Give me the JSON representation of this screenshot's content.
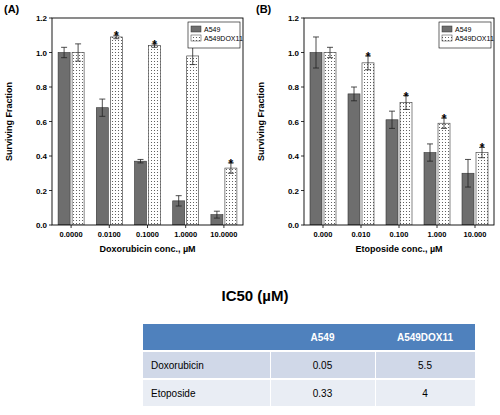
{
  "chart_data": [
    {
      "type": "bar",
      "title": "(A)",
      "x_label": "Doxorubicin conc., µM",
      "y_label": "Surviving Fraction",
      "categories": [
        "0.0000",
        "0.0100",
        "0.1000",
        "1.0000",
        "10.0000"
      ],
      "series": [
        {
          "name": "A549",
          "color": "#6e6e6e",
          "values": [
            1.0,
            0.68,
            0.37,
            0.14,
            0.06
          ],
          "errors": [
            0.03,
            0.05,
            0.01,
            0.03,
            0.02
          ]
        },
        {
          "name": "A549DOX11",
          "color": "#ffffff",
          "values": [
            1.0,
            1.09,
            1.04,
            0.98,
            0.33
          ],
          "errors": [
            0.05,
            0.01,
            0.01,
            0.05,
            0.03
          ]
        }
      ],
      "ylim": [
        0,
        1.2
      ],
      "yticks": [
        {
          "value": 0,
          "label": "0.0"
        },
        {
          "value": 0.2,
          "label": "0.2"
        },
        {
          "value": 0.4,
          "label": "0.4"
        },
        {
          "value": 0.6,
          "label": "0.6"
        },
        {
          "value": 0.8,
          "label": "0.8"
        },
        {
          "value": 1.0,
          "label": "1.0"
        },
        {
          "value": 1.2,
          "label": "1.2"
        }
      ],
      "annotations": [
        {
          "text": "*",
          "category": "0.0100",
          "series": "A549DOX11"
        },
        {
          "text": "*",
          "category": "0.1000",
          "series": "A549DOX11"
        },
        {
          "text": "*",
          "category": "1.0000",
          "series": "A549DOX11"
        },
        {
          "text": "*",
          "category": "10.0000",
          "series": "A549DOX11"
        }
      ],
      "legend": "upper right",
      "grid": false
    },
    {
      "type": "bar",
      "title": "(B)",
      "x_label": "Etoposide conc., µM",
      "y_label": "Surviving Fraction",
      "categories": [
        "0.000",
        "0.010",
        "0.100",
        "1.000",
        "10.000"
      ],
      "series": [
        {
          "name": "A549",
          "color": "#6e6e6e",
          "values": [
            1.0,
            0.76,
            0.61,
            0.42,
            0.3
          ],
          "errors": [
            0.09,
            0.04,
            0.05,
            0.05,
            0.08
          ]
        },
        {
          "name": "A549DOX11",
          "color": "#ffffff",
          "values": [
            1.0,
            0.94,
            0.71,
            0.59,
            0.42
          ],
          "errors": [
            0.03,
            0.04,
            0.04,
            0.03,
            0.03
          ]
        }
      ],
      "ylim": [
        0,
        1.2
      ],
      "yticks": [
        {
          "value": 0,
          "label": "0.0"
        },
        {
          "value": 0.2,
          "label": "0.2"
        },
        {
          "value": 0.4,
          "label": "0.4"
        },
        {
          "value": 0.6,
          "label": "0.6"
        },
        {
          "value": 0.8,
          "label": "0.8"
        },
        {
          "value": 1.0,
          "label": "1.0"
        },
        {
          "value": 1.2,
          "label": "1.2"
        }
      ],
      "annotations": [
        {
          "text": "*",
          "category": "0.010",
          "series": "A549DOX11"
        },
        {
          "text": "*",
          "category": "0.100",
          "series": "A549DOX11"
        },
        {
          "text": "*",
          "category": "1.000",
          "series": "A549DOX11"
        },
        {
          "text": "*",
          "category": "10.000",
          "series": "A549DOX11"
        }
      ],
      "legend": "upper right",
      "grid": false
    }
  ],
  "table": {
    "title": "IC50 (µM)",
    "columns": [
      "A549",
      "A549DOX11"
    ],
    "rows": [
      {
        "label": "Doxorubicin",
        "values": [
          0.05,
          5.5
        ]
      },
      {
        "label": "Etoposide",
        "values": [
          0.33,
          4
        ]
      }
    ]
  }
}
